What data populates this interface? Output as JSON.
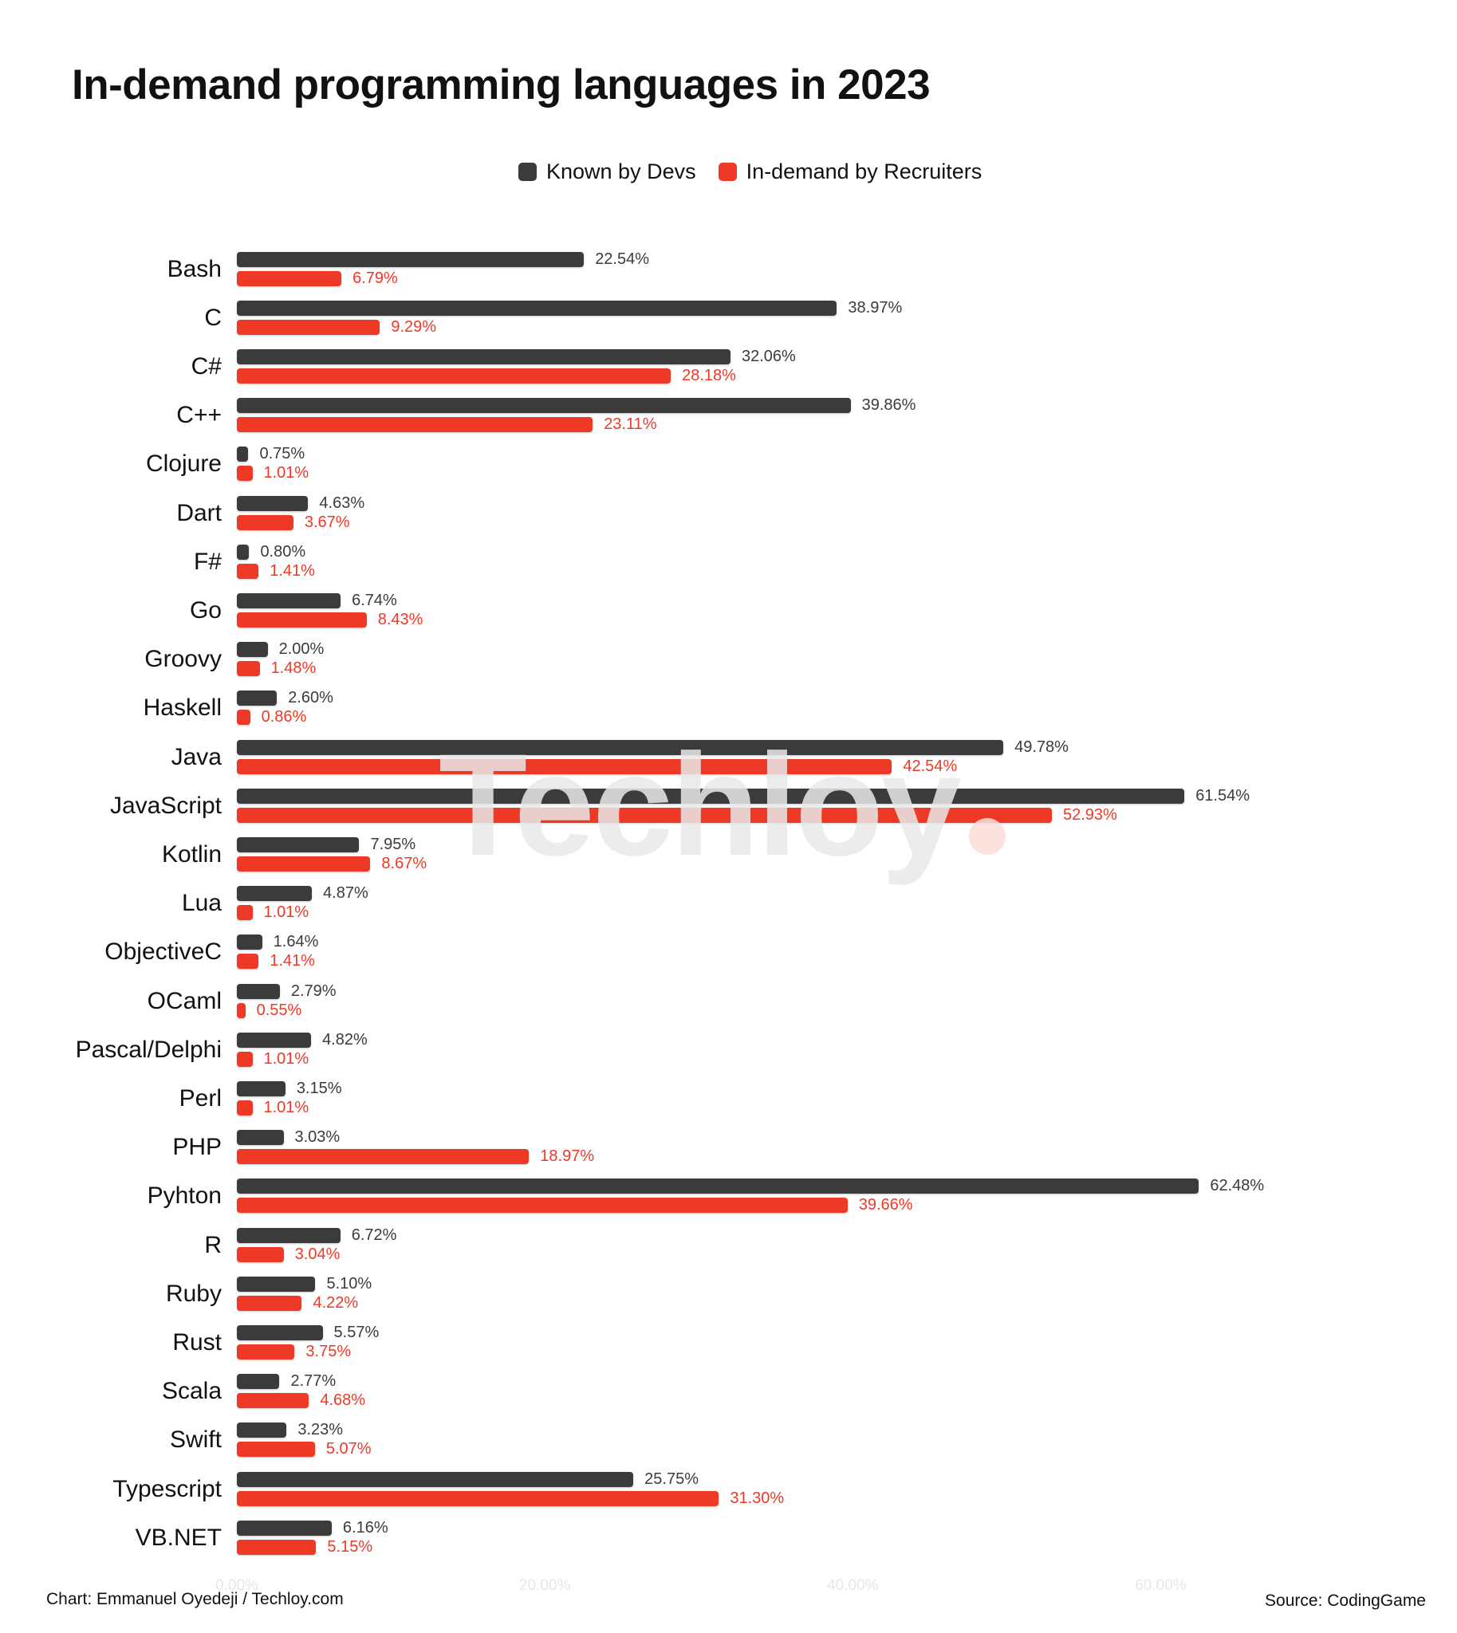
{
  "title": "In-demand programming languages in 2023",
  "watermark_text": "Techloy",
  "footer": {
    "credit": "Chart: Emmanuel Oyedeji / Techloy.com",
    "source": "Source: CodingGame"
  },
  "colors": {
    "devs": "#3b3b3b",
    "recruiters": "#ee3926",
    "watermark": "#e9e9e9",
    "watermark_dot": "#fbdeda",
    "axis_tick": "#e7e7e7"
  },
  "legend": [
    {
      "label": "Known by Devs",
      "color": "#3b3b3b"
    },
    {
      "label": "In-demand by Recruiters",
      "color": "#ee3926"
    }
  ],
  "chart_data": {
    "type": "bar",
    "orientation": "horizontal",
    "title": "In-demand programming languages in 2023",
    "grid": false,
    "legend_position": "top",
    "value_labels": true,
    "xlim": [
      0,
      65
    ],
    "x_ticks": [
      {
        "label": "0.00%",
        "value": 0
      },
      {
        "label": "20.00%",
        "value": 20
      },
      {
        "label": "40.00%",
        "value": 40
      },
      {
        "label": "60.00%",
        "value": 60
      }
    ],
    "categories": [
      "Bash",
      "C",
      "C#",
      "C++",
      "Clojure",
      "Dart",
      "F#",
      "Go",
      "Groovy",
      "Haskell",
      "Java",
      "JavaScript",
      "Kotlin",
      "Lua",
      "ObjectiveC",
      "OCaml",
      "Pascal/Delphi",
      "Perl",
      "PHP",
      "Pyhton",
      "R",
      "Ruby",
      "Rust",
      "Scala",
      "Swift",
      "Typescript",
      "VB.NET"
    ],
    "series": [
      {
        "name": "Known by Devs",
        "color": "#3b3b3b",
        "values": [
          22.54,
          38.97,
          32.06,
          39.86,
          0.75,
          4.63,
          0.8,
          6.74,
          2.0,
          2.6,
          49.78,
          61.54,
          7.95,
          4.87,
          1.64,
          2.79,
          4.82,
          3.15,
          3.03,
          62.48,
          6.72,
          5.1,
          5.57,
          2.77,
          3.23,
          25.75,
          6.16
        ],
        "labels": [
          "22.54%",
          "38.97%",
          "32.06%",
          "39.86%",
          "0.75%",
          "4.63%",
          "0.80%",
          "6.74%",
          "2.00%",
          "2.60%",
          "49.78%",
          "61.54%",
          "7.95%",
          "4.87%",
          "1.64%",
          "2.79%",
          "4.82%",
          "3.15%",
          "3.03%",
          "62.48%",
          "6.72%",
          "5.10%",
          "5.57%",
          "2.77%",
          "3.23%",
          "25.75%",
          "6.16%"
        ]
      },
      {
        "name": "In-demand by Recruiters",
        "color": "#ee3926",
        "values": [
          6.79,
          9.29,
          28.18,
          23.11,
          1.01,
          3.67,
          1.41,
          8.43,
          1.48,
          0.86,
          42.54,
          52.93,
          8.67,
          1.01,
          1.41,
          0.55,
          1.01,
          1.01,
          18.97,
          39.66,
          3.04,
          4.22,
          3.75,
          4.68,
          5.07,
          31.3,
          5.15
        ],
        "labels": [
          "6.79%",
          "9.29%",
          "28.18%",
          "23.11%",
          "1.01%",
          "3.67%",
          "1.41%",
          "8.43%",
          "1.48%",
          "0.86%",
          "42.54%",
          "52.93%",
          "8.67%",
          "1.01%",
          "1.41%",
          "0.55%",
          "1.01%",
          "1.01%",
          "18.97%",
          "39.66%",
          "3.04%",
          "4.22%",
          "3.75%",
          "4.68%",
          "5.07%",
          "31.30%",
          "5.15%"
        ]
      }
    ]
  }
}
